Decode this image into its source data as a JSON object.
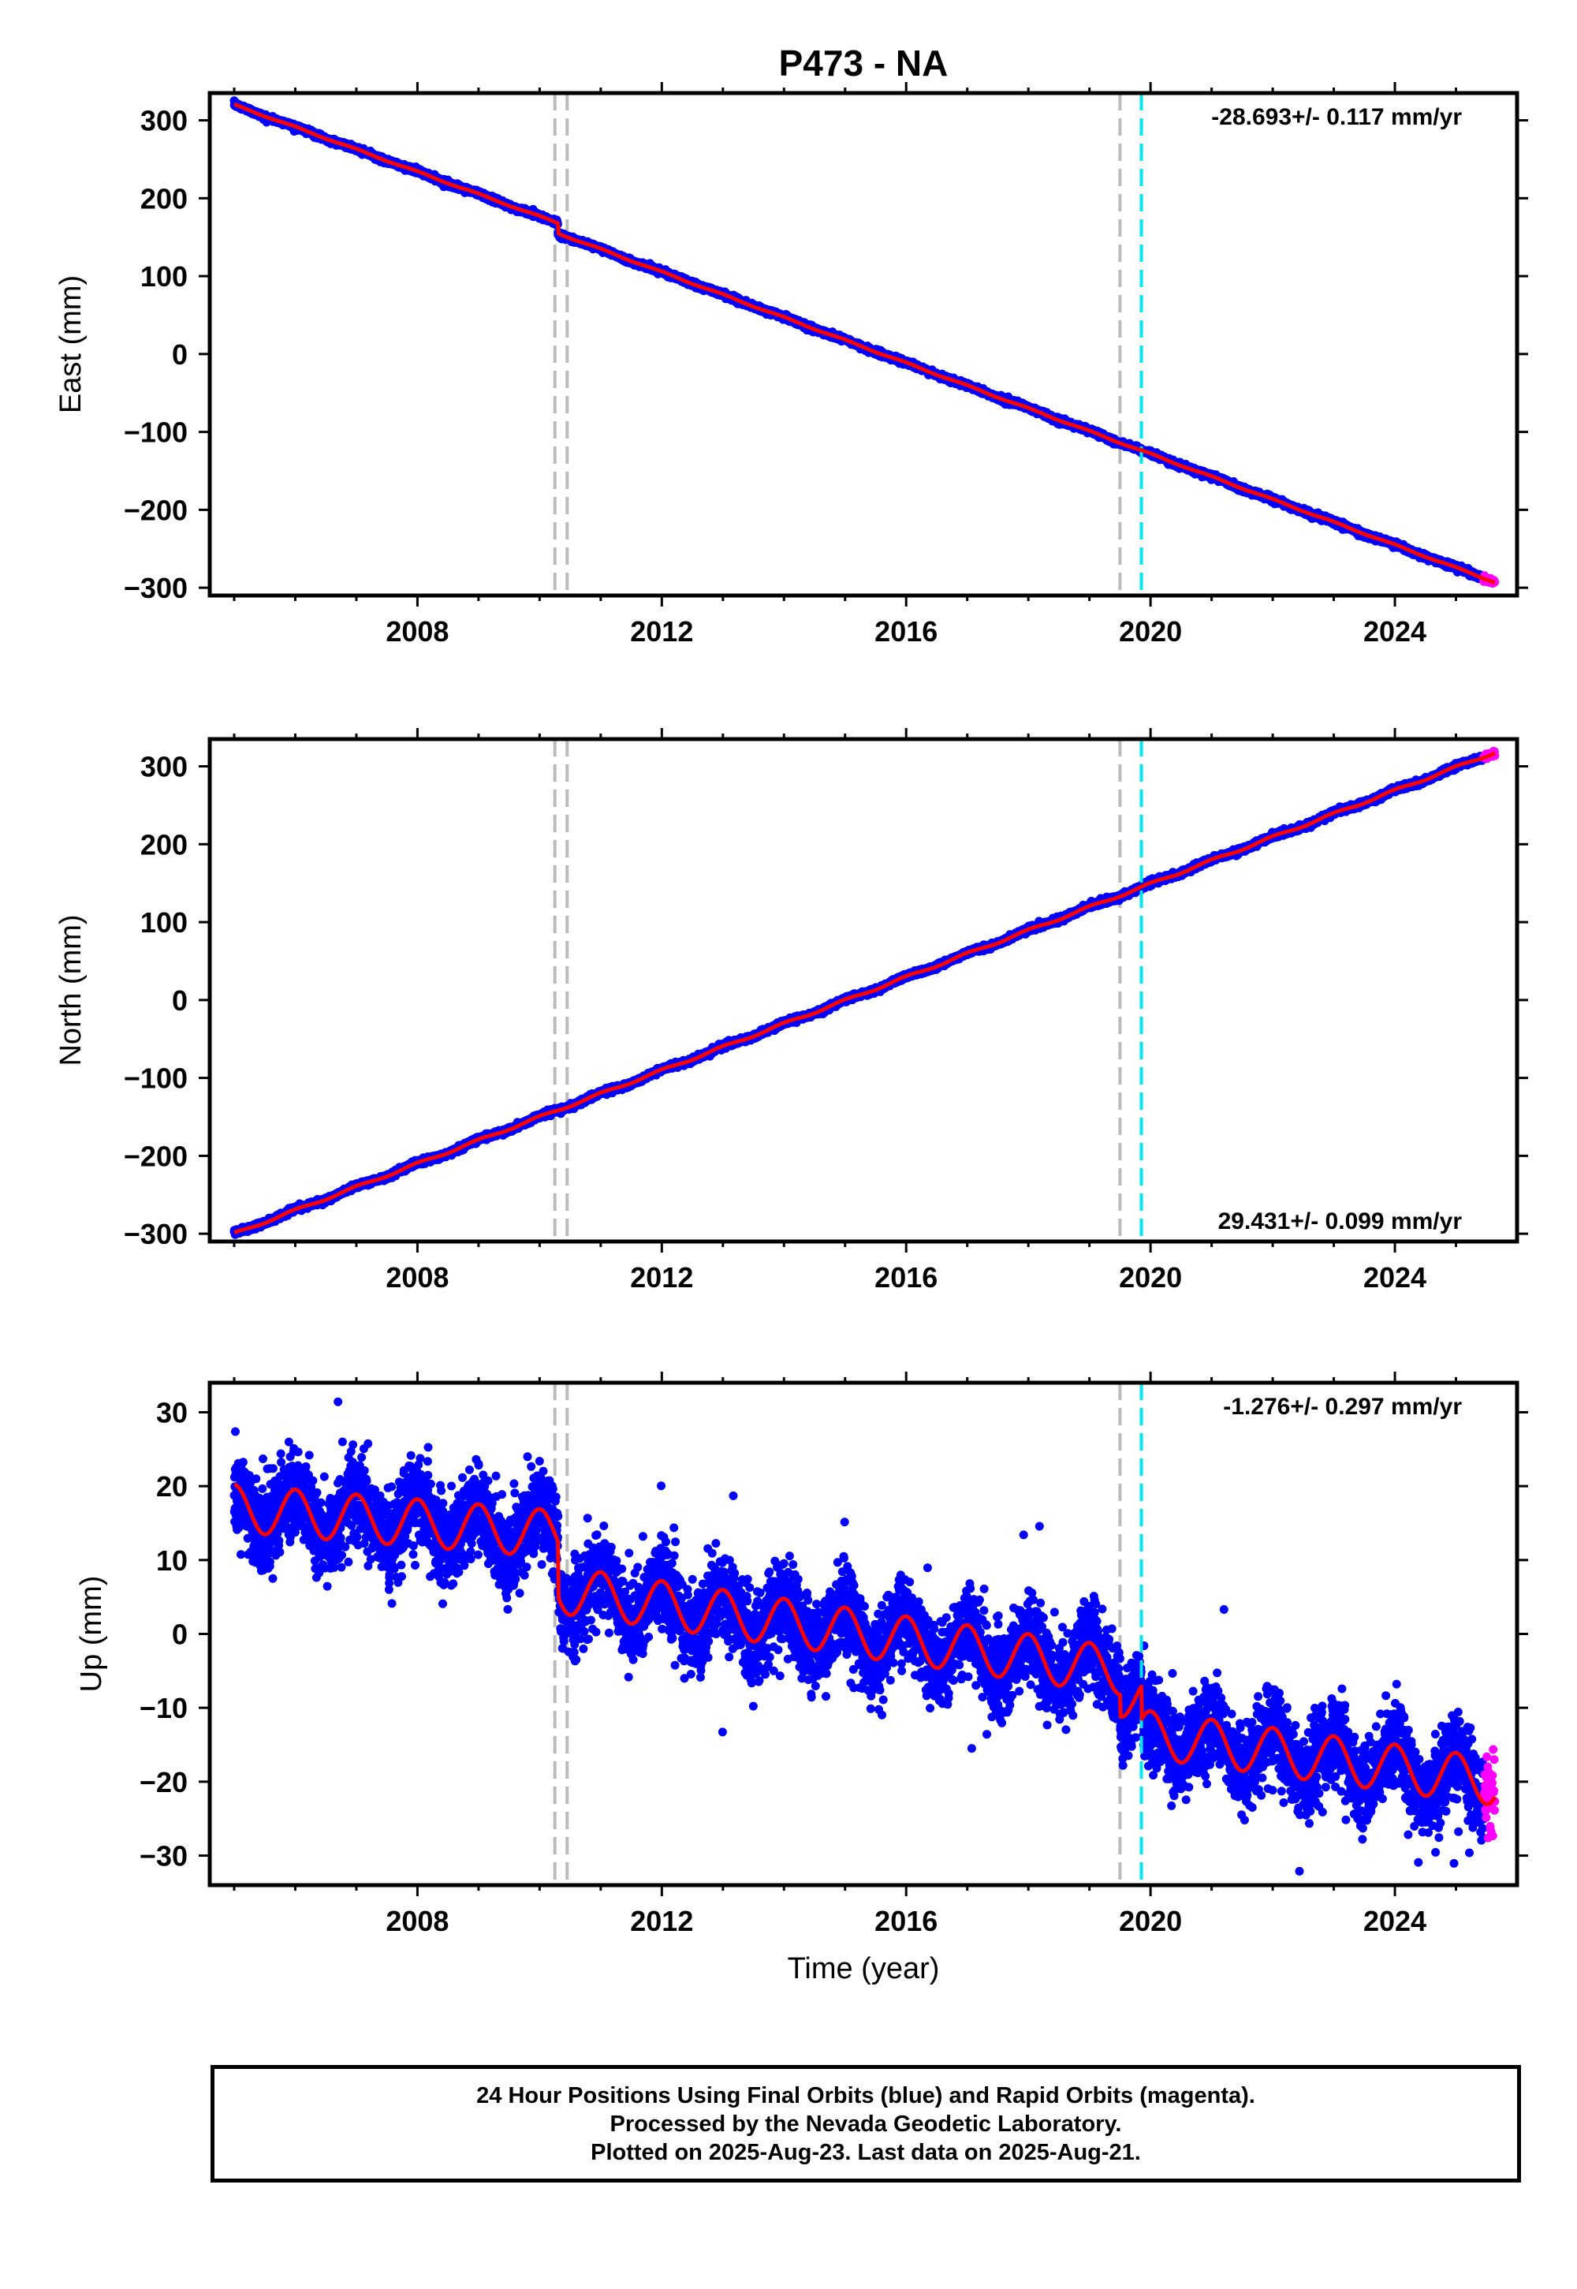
{
  "title": "P473 - NA",
  "footer": {
    "line1": "24 Hour Positions Using Final Orbits (blue) and Rapid Orbits (magenta).",
    "line2": "Processed by the Nevada Geodetic Laboratory.",
    "line3": "Plotted on 2025-Aug-23. Last data on 2025-Aug-21."
  },
  "colors": {
    "final": "#0000ff",
    "rapid": "#ff00ff",
    "model": "#ff0000",
    "equipment_change": "#bbbbbb",
    "earthquake": "#00e5ee"
  },
  "chart_data": [
    {
      "type": "scatter",
      "name": "east",
      "ylabel": "East (mm)",
      "xlabel": "",
      "xlim": [
        2004.6,
        2026.0
      ],
      "ylim": [
        -310,
        335
      ],
      "yticks": [
        300,
        200,
        100,
        0,
        -100,
        -200,
        -300
      ],
      "xticks": [
        2008,
        2012,
        2016,
        2020,
        2024
      ],
      "rate_label": "-28.693+/- 0.117 mm/yr",
      "rate_position": "top-right",
      "data_start": 2005.0,
      "final_end": 2025.45,
      "data_end": 2025.64,
      "trend": [
        {
          "x": 2005.0,
          "y": 320
        },
        {
          "x": 2010.3,
          "y": 168
        },
        {
          "x": 2010.3,
          "y": 155
        },
        {
          "x": 2025.64,
          "y": -293
        }
      ],
      "step": {
        "x": 2010.3,
        "dy": -13
      },
      "seasonal_amplitude": 0.8,
      "scatter_sd": 1.6,
      "equipment_changes": [
        2010.25,
        2010.45,
        2019.5
      ],
      "earthquakes": [
        2019.85
      ]
    },
    {
      "type": "scatter",
      "name": "north",
      "ylabel": "North (mm)",
      "xlabel": "",
      "xlim": [
        2004.6,
        2026.0
      ],
      "ylim": [
        -310,
        335
      ],
      "yticks": [
        300,
        200,
        100,
        0,
        -100,
        -200,
        -300
      ],
      "xticks": [
        2008,
        2012,
        2016,
        2020,
        2024
      ],
      "rate_label": "29.431+/- 0.099 mm/yr",
      "rate_position": "bottom-right",
      "data_start": 2005.0,
      "final_end": 2025.45,
      "data_end": 2025.64,
      "trend": [
        {
          "x": 2005.0,
          "y": -300
        },
        {
          "x": 2025.64,
          "y": 318
        }
      ],
      "step": null,
      "seasonal_amplitude": 1.5,
      "scatter_sd": 1.6,
      "equipment_changes": [
        2010.25,
        2010.45,
        2019.5
      ],
      "earthquakes": [
        2019.85
      ]
    },
    {
      "type": "scatter",
      "name": "up",
      "ylabel": "Up (mm)",
      "xlabel": "Time (year)",
      "xlim": [
        2004.6,
        2026.0
      ],
      "ylim": [
        -34,
        34
      ],
      "yticks": [
        30,
        20,
        10,
        0,
        -10,
        -20,
        -30
      ],
      "xticks": [
        2008,
        2012,
        2016,
        2020,
        2024
      ],
      "rate_label": "-1.276+/- 0.297 mm/yr",
      "rate_position": "top-right",
      "data_start": 2005.0,
      "final_end": 2025.45,
      "data_end": 2025.64,
      "trend": [
        {
          "x": 2005.0,
          "y": 17
        },
        {
          "x": 2010.3,
          "y": 13.5
        },
        {
          "x": 2010.3,
          "y": 6
        },
        {
          "x": 2019.5,
          "y": -5
        },
        {
          "x": 2019.5,
          "y": -8
        },
        {
          "x": 2019.85,
          "y": -9
        },
        {
          "x": 2019.85,
          "y": -13.5
        },
        {
          "x": 2025.64,
          "y": -20
        }
      ],
      "seasonal_amplitude": 3.2,
      "scatter_sd": 2.8,
      "equipment_changes": [
        2010.25,
        2010.45,
        2019.5
      ],
      "earthquakes": [
        2019.85
      ]
    }
  ]
}
